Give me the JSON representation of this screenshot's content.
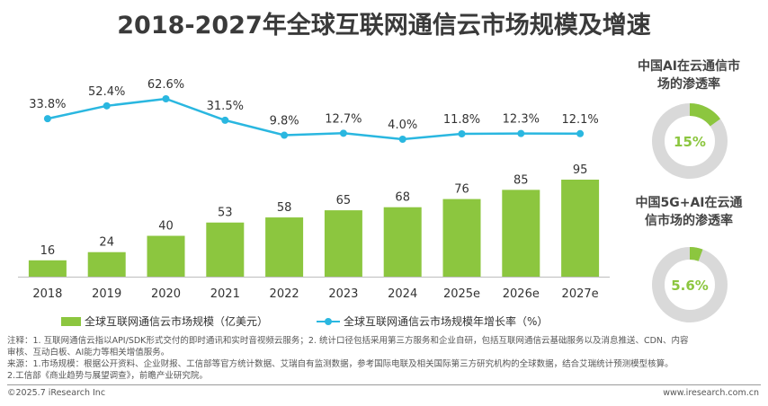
{
  "title": "2018-2027年全球互联网通信云市场规模及增速",
  "chart_data": [
    {
      "type": "bar",
      "categories": [
        "2018",
        "2019",
        "2020",
        "2021",
        "2022",
        "2023",
        "2024",
        "2025e",
        "2026e",
        "2027e"
      ],
      "series": [
        {
          "name": "全球互联网通信云市场规模（亿美元）",
          "type": "bar",
          "color": "#8cc63f",
          "values": [
            16,
            24,
            40,
            53,
            58,
            65,
            68,
            76,
            85,
            95
          ]
        },
        {
          "name": "全球互联网通信云市场规模年增长率（%）",
          "type": "line",
          "color": "#2ab7e0",
          "values": [
            33.8,
            52.4,
            62.6,
            31.5,
            9.8,
            12.7,
            4.0,
            11.8,
            12.3,
            12.1
          ],
          "labels": [
            "33.8%",
            "52.4%",
            "62.6%",
            "31.5%",
            "9.8%",
            "12.7%",
            "4.0%",
            "11.8%",
            "12.3%",
            "12.1%"
          ]
        }
      ],
      "bar_labels": [
        "16",
        "24",
        "40",
        "53",
        "58",
        "65",
        "68",
        "76",
        "85",
        "95"
      ],
      "grid": false,
      "legend": "bottom"
    },
    {
      "type": "pie",
      "title": "中国AI在云通信市场的渗透率",
      "values": [
        15,
        85
      ],
      "label": "15%",
      "colors": [
        "#8cc63f",
        "#d9d9d9"
      ]
    },
    {
      "type": "pie",
      "title": "中国5G+AI在云通信市场的渗透率",
      "values": [
        5.6,
        94.4
      ],
      "label": "5.6%",
      "colors": [
        "#8cc63f",
        "#d9d9d9"
      ]
    }
  ],
  "side": {
    "ai_title_line1": "中国AI在云通信市",
    "ai_title_line2": "场的渗透率",
    "ai5g_title_line1": "中国5G+AI在云通",
    "ai5g_title_line2": "信市场的渗透率"
  },
  "legend": {
    "bar_label": "全球互联网通信云市场规模（亿美元）",
    "line_label": "全球互联网通信云市场规模年增长率（%）"
  },
  "notes": {
    "line1": "注释：1. 互联网通信云指以API/SDK形式交付的即时通讯和实时音视频云服务；2. 统计口径包括采用第三方服务和企业自研，包括互联网通信云基础服务以及消息推送、CDN、内容",
    "line2": "审核、互动白板、AI能力等相关增值服务。",
    "line3": "来源：1.市场规模：根据公开资料、企业财报、工信部等官方统计数据、艾瑞自有监测数据，参考国际电联及相关国际第三方研究机构的全球数据，结合艾瑞统计预测模型核算。",
    "line4": "2.工信部《商业趋势与展望调查》，前瞻产业研究院。"
  },
  "footer": {
    "left": "©2025.7 iResearch Inc",
    "right": "www.iresearch.com.cn"
  }
}
